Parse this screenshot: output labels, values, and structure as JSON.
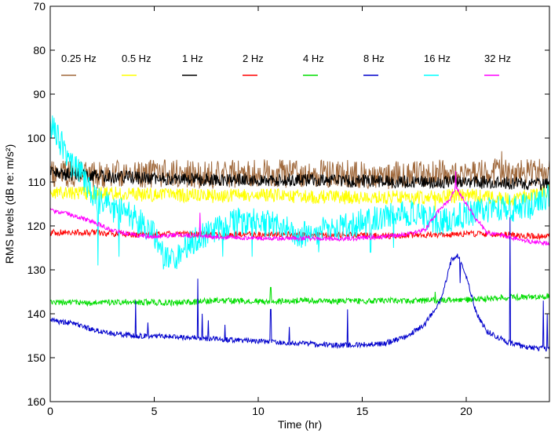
{
  "chart_data": {
    "type": "line",
    "xlabel": "Time (hr)",
    "ylabel": "RMS levels (dB re: m/s²)",
    "xlim": [
      0,
      24
    ],
    "ylim": [
      70,
      160
    ],
    "y_inverted": true,
    "xticks": [
      0,
      5,
      10,
      15,
      20
    ],
    "yticks": [
      70,
      80,
      90,
      100,
      110,
      120,
      130,
      140,
      150,
      160
    ],
    "grid": false,
    "legend_position": "top, inside plot, single row",
    "series": [
      {
        "name": "0.25 Hz",
        "color": "#a0693c",
        "noise": 3.2,
        "seed": 11,
        "points": [
          [
            0,
            108
          ],
          [
            2,
            108.5
          ],
          [
            4,
            108.2
          ],
          [
            6,
            108
          ],
          [
            8,
            108.3
          ],
          [
            10,
            108
          ],
          [
            12,
            108.2
          ],
          [
            14,
            108
          ],
          [
            16,
            108.5
          ],
          [
            18,
            108
          ],
          [
            20,
            108
          ],
          [
            22,
            107.8
          ],
          [
            24,
            108
          ]
        ],
        "spikes": [
          [
            21.7,
            103
          ],
          [
            0.2,
            111
          ]
        ]
      },
      {
        "name": "0.5 Hz",
        "color": "#ffff00",
        "noise": 1.6,
        "seed": 23,
        "points": [
          [
            0,
            112.5
          ],
          [
            2,
            112.5
          ],
          [
            4,
            112.8
          ],
          [
            6,
            113
          ],
          [
            8,
            113.2
          ],
          [
            10,
            113
          ],
          [
            12,
            113.3
          ],
          [
            14,
            113.5
          ],
          [
            16,
            113.5
          ],
          [
            18,
            113.5
          ],
          [
            20,
            113
          ],
          [
            22,
            114
          ],
          [
            23,
            113
          ],
          [
            24,
            112
          ]
        ],
        "spikes": [
          [
            18.5,
            116.5
          ]
        ]
      },
      {
        "name": "1 Hz",
        "color": "#000000",
        "noise": 1.5,
        "seed": 37,
        "points": [
          [
            0,
            108
          ],
          [
            2,
            108.5
          ],
          [
            4,
            109
          ],
          [
            6,
            109.3
          ],
          [
            8,
            109.5
          ],
          [
            10,
            109.5
          ],
          [
            12,
            109.6
          ],
          [
            14,
            109.8
          ],
          [
            16,
            109.8
          ],
          [
            18,
            110
          ],
          [
            20,
            110
          ],
          [
            22,
            110.2
          ],
          [
            24,
            110.5
          ]
        ],
        "spikes": []
      },
      {
        "name": "2 Hz",
        "color": "#ff0000",
        "noise": 0.7,
        "seed": 41,
        "points": [
          [
            0,
            121.5
          ],
          [
            2,
            121.5
          ],
          [
            4,
            122
          ],
          [
            6,
            121.8
          ],
          [
            8,
            122
          ],
          [
            10,
            122
          ],
          [
            12,
            122
          ],
          [
            14,
            122
          ],
          [
            16,
            122.3
          ],
          [
            18,
            122
          ],
          [
            20,
            121.8
          ],
          [
            22,
            122
          ],
          [
            24,
            122.5
          ]
        ],
        "spikes": []
      },
      {
        "name": "4 Hz",
        "color": "#00dd00",
        "noise": 0.7,
        "seed": 53,
        "points": [
          [
            0,
            137.5
          ],
          [
            2,
            137.5
          ],
          [
            4,
            137.3
          ],
          [
            6,
            137.5
          ],
          [
            8,
            137
          ],
          [
            10,
            137.2
          ],
          [
            12,
            137
          ],
          [
            14,
            137.2
          ],
          [
            16,
            137
          ],
          [
            18,
            137
          ],
          [
            20,
            136.8
          ],
          [
            22,
            136.3
          ],
          [
            24,
            136
          ]
        ],
        "spikes": [
          [
            10.6,
            134
          ],
          [
            18.5,
            135
          ]
        ]
      },
      {
        "name": "8 Hz",
        "color": "#0000cc",
        "noise": 0.6,
        "seed": 67,
        "points": [
          [
            0,
            141.5
          ],
          [
            1,
            142.2
          ],
          [
            2,
            143.5
          ],
          [
            3,
            144.5
          ],
          [
            4,
            145
          ],
          [
            6,
            145.2
          ],
          [
            8,
            145.8
          ],
          [
            10,
            146.3
          ],
          [
            12,
            146.8
          ],
          [
            14,
            147.2
          ],
          [
            16,
            146.8
          ],
          [
            17,
            145.5
          ],
          [
            18,
            142.5
          ],
          [
            18.8,
            136.5
          ],
          [
            19.3,
            127.5
          ],
          [
            19.6,
            126.5
          ],
          [
            20,
            131.5
          ],
          [
            20.5,
            140
          ],
          [
            21,
            144
          ],
          [
            22,
            146.5
          ],
          [
            23,
            147.8
          ],
          [
            24,
            148
          ]
        ],
        "spikes": [
          [
            4.1,
            137
          ],
          [
            4.7,
            142
          ],
          [
            7.1,
            132
          ],
          [
            7.3,
            140
          ],
          [
            7.6,
            141.5
          ],
          [
            8.4,
            142.5
          ],
          [
            10.6,
            139
          ],
          [
            11.5,
            143
          ],
          [
            14.3,
            139
          ],
          [
            19.7,
            133
          ],
          [
            22.1,
            118
          ],
          [
            23.7,
            137
          ],
          [
            23.9,
            140
          ]
        ]
      },
      {
        "name": "16 Hz",
        "color": "#00ffff",
        "noise": 3.2,
        "seed": 79,
        "points": [
          [
            0,
            97
          ],
          [
            0.5,
            101
          ],
          [
            1,
            106
          ],
          [
            1.5,
            108
          ],
          [
            2,
            113
          ],
          [
            3,
            116
          ],
          [
            4,
            118
          ],
          [
            5,
            122
          ],
          [
            5.5,
            128
          ],
          [
            6,
            127
          ],
          [
            7,
            123
          ],
          [
            8,
            121
          ],
          [
            9,
            119
          ],
          [
            10,
            119
          ],
          [
            11,
            120
          ],
          [
            12,
            122
          ],
          [
            13,
            121
          ],
          [
            14,
            120.5
          ],
          [
            15,
            119
          ],
          [
            16,
            118
          ],
          [
            17,
            117
          ],
          [
            18,
            118
          ],
          [
            19,
            119
          ],
          [
            20,
            117
          ],
          [
            21,
            116.5
          ],
          [
            22,
            116
          ],
          [
            23,
            115.5
          ],
          [
            24,
            113
          ]
        ],
        "spikes": [
          [
            2.3,
            129
          ],
          [
            3.3,
            127
          ],
          [
            6.4,
            126
          ],
          [
            8.3,
            127
          ],
          [
            9.7,
            127
          ],
          [
            12.9,
            126
          ],
          [
            15.4,
            126
          ],
          [
            16.5,
            125
          ]
        ]
      },
      {
        "name": "32 Hz",
        "color": "#ff00ff",
        "noise": 0.5,
        "seed": 97,
        "points": [
          [
            0,
            116.5
          ],
          [
            1,
            117.5
          ],
          [
            2,
            119
          ],
          [
            3,
            121
          ],
          [
            4,
            122
          ],
          [
            5,
            122.5
          ],
          [
            6,
            122
          ],
          [
            8,
            122.5
          ],
          [
            10,
            122.8
          ],
          [
            12,
            122.8
          ],
          [
            14,
            123
          ],
          [
            16,
            122.5
          ],
          [
            17,
            122
          ],
          [
            18,
            121
          ],
          [
            18.6,
            117
          ],
          [
            19.2,
            114
          ],
          [
            19.5,
            111
          ],
          [
            20,
            115
          ],
          [
            20.5,
            118.5
          ],
          [
            21,
            121.5
          ],
          [
            22,
            122.5
          ],
          [
            23,
            123.5
          ],
          [
            24,
            124
          ]
        ],
        "spikes": [
          [
            7.2,
            117
          ],
          [
            19.5,
            107.5
          ]
        ]
      }
    ]
  }
}
